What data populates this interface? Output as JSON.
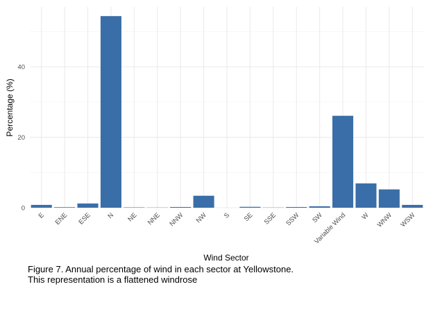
{
  "chart_data": {
    "type": "bar",
    "xlabel": "Wind Sector",
    "ylabel": "Percentage (%)",
    "categories": [
      "E",
      "ENE",
      "ESE",
      "N",
      "NE",
      "NNE",
      "NNW",
      "NW",
      "S",
      "SE",
      "SSE",
      "SSW",
      "SW",
      "Variable Wind",
      "W",
      "WNW",
      "WSW"
    ],
    "values": [
      0.8,
      0.15,
      1.2,
      54.4,
      0.1,
      0.05,
      0.2,
      3.4,
      0.0,
      0.25,
      0.05,
      0.2,
      0.4,
      26.1,
      6.9,
      5.2,
      0.8
    ],
    "ylim": [
      0,
      57
    ],
    "yticks": [
      0,
      20,
      40
    ],
    "grid": true,
    "bar_color": "#3a6ea8"
  },
  "caption": {
    "line1": "Figure 7. Annual percentage of wind in each sector at Yellowstone.",
    "line2": "This representation is a flattened windrose"
  }
}
